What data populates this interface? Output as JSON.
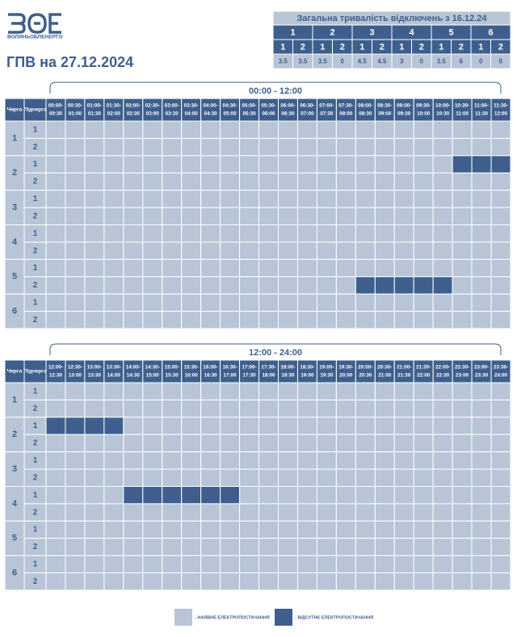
{
  "header": {
    "logo_text": "ВОЛИНЬОБЛЕНЕРГО",
    "title": "ГПВ на 27.12.2024"
  },
  "summary": {
    "title": "Загальна тривалість відключень з 16.12.24",
    "queues": [
      {
        "label": "1",
        "subs": [
          {
            "label": "1",
            "value": "3.5"
          },
          {
            "label": "2",
            "value": "3.5"
          }
        ]
      },
      {
        "label": "2",
        "subs": [
          {
            "label": "1",
            "value": "3.5"
          },
          {
            "label": "2",
            "value": "0"
          }
        ]
      },
      {
        "label": "3",
        "subs": [
          {
            "label": "1",
            "value": "4.5"
          },
          {
            "label": "2",
            "value": "4.5"
          }
        ]
      },
      {
        "label": "4",
        "subs": [
          {
            "label": "1",
            "value": "3"
          },
          {
            "label": "2",
            "value": "0"
          }
        ]
      },
      {
        "label": "5",
        "subs": [
          {
            "label": "1",
            "value": "3.5"
          },
          {
            "label": "2",
            "value": "6"
          }
        ]
      },
      {
        "label": "6",
        "subs": [
          {
            "label": "1",
            "value": "0"
          },
          {
            "label": "2",
            "value": "0"
          }
        ]
      }
    ]
  },
  "schedules": [
    {
      "period": "00:00 - 12:00",
      "queue_header": "Черга",
      "sub_header": "Підчерга",
      "slots": [
        [
          "00:00-",
          "00:30"
        ],
        [
          "00:30-",
          "01:00"
        ],
        [
          "01:00-",
          "01:30"
        ],
        [
          "01:30-",
          "02:00"
        ],
        [
          "02:00-",
          "02:30"
        ],
        [
          "02:30-",
          "03:00"
        ],
        [
          "03:00-",
          "03:30"
        ],
        [
          "03:30-",
          "04:00"
        ],
        [
          "04:00-",
          "04:30"
        ],
        [
          "04:30-",
          "05:00"
        ],
        [
          "05:00-",
          "05:30"
        ],
        [
          "05:30-",
          "06:00"
        ],
        [
          "06:00-",
          "06:30"
        ],
        [
          "06:30-",
          "07:00"
        ],
        [
          "07:00-",
          "07:30"
        ],
        [
          "07:30-",
          "08:00"
        ],
        [
          "08:00-",
          "08:30"
        ],
        [
          "08:30-",
          "09:00"
        ],
        [
          "09:00-",
          "09:30"
        ],
        [
          "09:30-",
          "10:00"
        ],
        [
          "10:00-",
          "10:30"
        ],
        [
          "10:30-",
          "11:00"
        ],
        [
          "11:00-",
          "11:30"
        ],
        [
          "11:30-",
          "12:00"
        ]
      ],
      "rows": [
        {
          "queue": "1",
          "subs": [
            {
              "label": "1",
              "off": []
            },
            {
              "label": "2",
              "off": []
            }
          ]
        },
        {
          "queue": "2",
          "subs": [
            {
              "label": "1",
              "off": [
                21,
                22,
                23
              ]
            },
            {
              "label": "2",
              "off": []
            }
          ]
        },
        {
          "queue": "3",
          "subs": [
            {
              "label": "1",
              "off": []
            },
            {
              "label": "2",
              "off": []
            }
          ]
        },
        {
          "queue": "4",
          "subs": [
            {
              "label": "1",
              "off": []
            },
            {
              "label": "2",
              "off": []
            }
          ]
        },
        {
          "queue": "5",
          "subs": [
            {
              "label": "1",
              "off": []
            },
            {
              "label": "2",
              "off": [
                16,
                17,
                18,
                19,
                20
              ]
            }
          ]
        },
        {
          "queue": "6",
          "subs": [
            {
              "label": "1",
              "off": []
            },
            {
              "label": "2",
              "off": []
            }
          ]
        }
      ]
    },
    {
      "period": "12:00 - 24:00",
      "queue_header": "Черга",
      "sub_header": "Підчерга",
      "slots": [
        [
          "12:00-",
          "12:30"
        ],
        [
          "12:30-",
          "13:00"
        ],
        [
          "13:00-",
          "13:30"
        ],
        [
          "13:30-",
          "14:00"
        ],
        [
          "14:00-",
          "14:30"
        ],
        [
          "14:30-",
          "15:00"
        ],
        [
          "15:00-",
          "15:30"
        ],
        [
          "15:30-",
          "16:00"
        ],
        [
          "16:00-",
          "16:30"
        ],
        [
          "16:30-",
          "17:00"
        ],
        [
          "17:00-",
          "17:30"
        ],
        [
          "17:30-",
          "18:00"
        ],
        [
          "18:00-",
          "18:30"
        ],
        [
          "18:30-",
          "19:00"
        ],
        [
          "19:00-",
          "19:30"
        ],
        [
          "19:30-",
          "20:00"
        ],
        [
          "20:00-",
          "20:30"
        ],
        [
          "20:30-",
          "21:00"
        ],
        [
          "21:00-",
          "21:30"
        ],
        [
          "21:30-",
          "22:00"
        ],
        [
          "22:00-",
          "22:30"
        ],
        [
          "22:30-",
          "23:00"
        ],
        [
          "23:00-",
          "23:30"
        ],
        [
          "23:30-",
          "24:00"
        ]
      ],
      "rows": [
        {
          "queue": "1",
          "subs": [
            {
              "label": "1",
              "off": []
            },
            {
              "label": "2",
              "off": []
            }
          ]
        },
        {
          "queue": "2",
          "subs": [
            {
              "label": "1",
              "off": [
                0,
                1,
                2,
                3
              ]
            },
            {
              "label": "2",
              "off": []
            }
          ]
        },
        {
          "queue": "3",
          "subs": [
            {
              "label": "1",
              "off": []
            },
            {
              "label": "2",
              "off": []
            }
          ]
        },
        {
          "queue": "4",
          "subs": [
            {
              "label": "1",
              "off": [
                4,
                5,
                6,
                7,
                8,
                9
              ]
            },
            {
              "label": "2",
              "off": []
            }
          ]
        },
        {
          "queue": "5",
          "subs": [
            {
              "label": "1",
              "off": []
            },
            {
              "label": "2",
              "off": []
            }
          ]
        },
        {
          "queue": "6",
          "subs": [
            {
              "label": "1",
              "off": []
            },
            {
              "label": "2",
              "off": []
            }
          ]
        }
      ]
    }
  ],
  "legend": {
    "available": "- НАЯВНЕ ЕЛЕКТРОПОСТАЧАННЯ",
    "missing": "- ВІДСУТНЄ ЕЛЕКТРОПОСТАЧАННЯ"
  }
}
